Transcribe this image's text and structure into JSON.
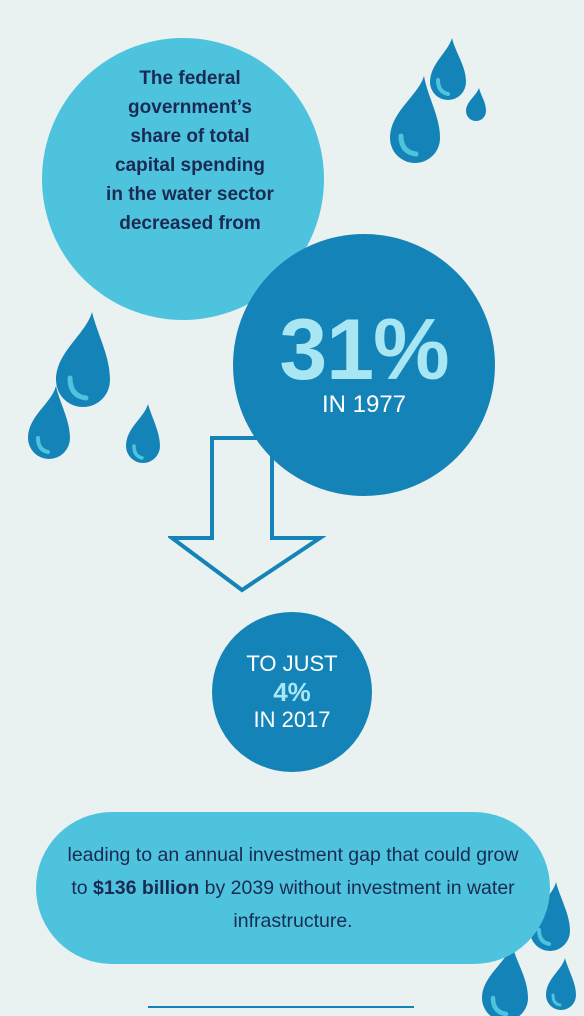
{
  "intro": {
    "text": "The federal government’s share of total capital spending in the water sector decreased from"
  },
  "stat_1977": {
    "value": "31%",
    "label": "IN 1977"
  },
  "stat_2017": {
    "prefix": "TO JUST",
    "value": "4%",
    "label": "IN 2017"
  },
  "conclusion": {
    "before": "leading to an annual investment gap that could grow to ",
    "highlight": "$136 billion",
    "after": " by 2039 without investment in water infrastructure."
  },
  "colors": {
    "background": "#e9f2f0",
    "light_blue": "#4ec3de",
    "dark_blue": "#1484b8",
    "navy_text": "#1b2a52",
    "pale_blue": "#a8e6f3"
  },
  "icons": [
    "water-drop-icon",
    "down-arrow-icon"
  ]
}
